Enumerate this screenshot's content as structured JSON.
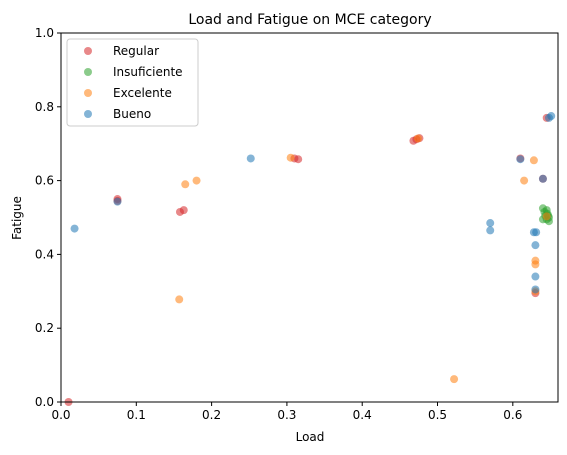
{
  "chart_data": {
    "type": "scatter",
    "title": "Load and Fatigue on MCE category",
    "xlabel": "Load",
    "ylabel": "Fatigue",
    "xlim": [
      0.0,
      0.66
    ],
    "ylim": [
      0.0,
      1.0
    ],
    "xticks": [
      "0.0",
      "0.1",
      "0.2",
      "0.3",
      "0.4",
      "0.5",
      "0.6"
    ],
    "yticks": [
      "0.0",
      "0.2",
      "0.4",
      "0.6",
      "0.8",
      "1.0"
    ],
    "grid": false,
    "legend_position": "top-left",
    "series": [
      {
        "name": "Regular",
        "color": "#d62728",
        "points": [
          [
            0.01,
            0.0
          ],
          [
            0.075,
            0.55
          ],
          [
            0.075,
            0.545
          ],
          [
            0.158,
            0.515
          ],
          [
            0.163,
            0.52
          ],
          [
            0.31,
            0.66
          ],
          [
            0.315,
            0.658
          ],
          [
            0.468,
            0.708
          ],
          [
            0.472,
            0.712
          ],
          [
            0.476,
            0.715
          ],
          [
            0.61,
            0.66
          ],
          [
            0.63,
            0.295
          ],
          [
            0.64,
            0.605
          ],
          [
            0.645,
            0.77
          ]
        ]
      },
      {
        "name": "Insuficiente",
        "color": "#2ca02c",
        "points": [
          [
            0.64,
            0.525
          ],
          [
            0.642,
            0.515
          ],
          [
            0.643,
            0.505
          ],
          [
            0.645,
            0.495
          ],
          [
            0.646,
            0.51
          ],
          [
            0.648,
            0.5
          ],
          [
            0.648,
            0.49
          ],
          [
            0.64,
            0.495
          ],
          [
            0.645,
            0.52
          ],
          [
            0.647,
            0.505
          ]
        ]
      },
      {
        "name": "Excelente",
        "color": "#ff7f0e",
        "points": [
          [
            0.157,
            0.278
          ],
          [
            0.165,
            0.59
          ],
          [
            0.18,
            0.6
          ],
          [
            0.305,
            0.662
          ],
          [
            0.474,
            0.714
          ],
          [
            0.522,
            0.062
          ],
          [
            0.615,
            0.6
          ],
          [
            0.628,
            0.655
          ],
          [
            0.63,
            0.383
          ],
          [
            0.63,
            0.373
          ],
          [
            0.63,
            0.3
          ],
          [
            0.645,
            0.503
          ]
        ]
      },
      {
        "name": "Bueno",
        "color": "#1f77b4",
        "points": [
          [
            0.018,
            0.47
          ],
          [
            0.075,
            0.543
          ],
          [
            0.252,
            0.66
          ],
          [
            0.57,
            0.485
          ],
          [
            0.57,
            0.465
          ],
          [
            0.61,
            0.658
          ],
          [
            0.628,
            0.46
          ],
          [
            0.631,
            0.46
          ],
          [
            0.63,
            0.425
          ],
          [
            0.63,
            0.34
          ],
          [
            0.63,
            0.305
          ],
          [
            0.64,
            0.605
          ],
          [
            0.648,
            0.77
          ],
          [
            0.651,
            0.775
          ]
        ]
      }
    ]
  }
}
